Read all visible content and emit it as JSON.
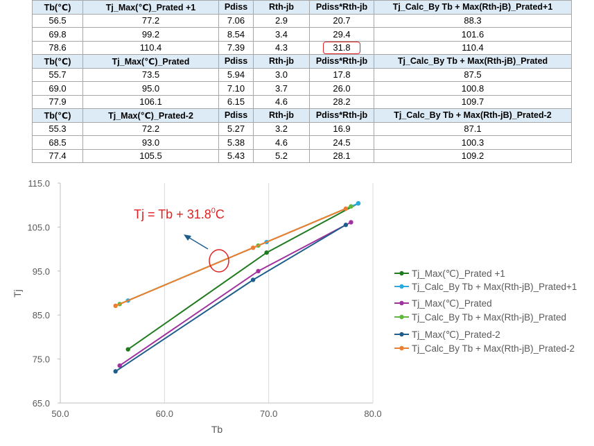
{
  "table": {
    "blocks": [
      {
        "header": [
          "Tb(℃)",
          "Tj_Max(℃)_Prated +1",
          "Pdiss",
          "Rth-jb",
          "Pdiss*Rth-jb",
          "Tj_Calc_By Tb + Max(Rth-jB)_Prated+1"
        ],
        "rows": [
          [
            "56.5",
            "77.2",
            "7.06",
            "2.9",
            "20.7",
            "88.3"
          ],
          [
            "69.8",
            "99.2",
            "8.54",
            "3.4",
            "29.4",
            "101.6"
          ],
          [
            "78.6",
            "110.4",
            "7.39",
            "4.3",
            "31.8",
            "110.4"
          ]
        ]
      },
      {
        "header": [
          "Tb(℃)",
          "Tj_Max(℃)_Prated",
          "Pdiss",
          "Rth-jb",
          "Pdiss*Rth-jb",
          "Tj_Calc_By Tb + Max(Rth-jB)_Prated"
        ],
        "rows": [
          [
            "55.7",
            "73.5",
            "5.94",
            "3.0",
            "17.8",
            "87.5"
          ],
          [
            "69.0",
            "95.0",
            "7.10",
            "3.7",
            "26.0",
            "100.8"
          ],
          [
            "77.9",
            "106.1",
            "6.15",
            "4.6",
            "28.2",
            "109.7"
          ]
        ]
      },
      {
        "header": [
          "Tb(℃)",
          "Tj_Max(℃)_Prated-2",
          "Pdiss",
          "Rth-jb",
          "Pdiss*Rth-jb",
          "Tj_Calc_By Tb + Max(Rth-jB)_Prated-2"
        ],
        "rows": [
          [
            "55.3",
            "72.2",
            "5.27",
            "3.2",
            "16.9",
            "87.1"
          ],
          [
            "68.5",
            "93.0",
            "5.38",
            "4.6",
            "24.5",
            "100.3"
          ],
          [
            "77.4",
            "105.5",
            "5.43",
            "5.2",
            "28.1",
            "109.2"
          ]
        ]
      }
    ]
  },
  "chart_data": {
    "type": "line",
    "xlabel": "Tb",
    "ylabel": "Tj",
    "xlim": [
      50,
      80
    ],
    "ylim": [
      65,
      115
    ],
    "xticks": [
      "50.0",
      "60.0",
      "70.0",
      "80.0"
    ],
    "yticks": [
      "65.0",
      "75.0",
      "85.0",
      "95.0",
      "105.0",
      "115.0"
    ],
    "grid": "vertical",
    "legend_position": "right",
    "annotation": {
      "prefix": "Tj = Tb + 31.8",
      "sup": "0",
      "suffix": "C"
    },
    "series": [
      {
        "name": "Tj_Max(℃)_Prated +1",
        "color": "#1e7b1e",
        "x": [
          56.5,
          69.8,
          78.6
        ],
        "y": [
          77.2,
          99.2,
          110.4
        ]
      },
      {
        "name": "Tj_Calc_By Tb + Max(Rth-jB)_Prated+1",
        "color": "#29abe2",
        "x": [
          56.5,
          69.8,
          78.6
        ],
        "y": [
          88.3,
          101.6,
          110.4
        ]
      },
      {
        "name": "Tj_Max(℃)_Prated",
        "color": "#a0319e",
        "x": [
          55.7,
          69.0,
          77.9
        ],
        "y": [
          73.5,
          95.0,
          106.1
        ]
      },
      {
        "name": "Tj_Calc_By Tb + Max(Rth-jB)_Prated",
        "color": "#5fb83b",
        "x": [
          55.7,
          69.0,
          77.9
        ],
        "y": [
          87.5,
          100.8,
          109.7
        ]
      },
      {
        "name": "Tj_Max(℃)_Prated-2",
        "color": "#1f5e8c",
        "x": [
          55.3,
          68.5,
          77.4
        ],
        "y": [
          72.2,
          93.0,
          105.5
        ]
      },
      {
        "name": "Tj_Calc_By Tb + Max(Rth-jB)_Prated-2",
        "color": "#ed7d31",
        "x": [
          55.3,
          68.5,
          77.4
        ],
        "y": [
          87.1,
          100.3,
          109.2
        ]
      }
    ]
  },
  "colors": {
    "header_bg": "#ddebf7",
    "annotation": "#e02020",
    "arrow": "#1f5e8c"
  }
}
